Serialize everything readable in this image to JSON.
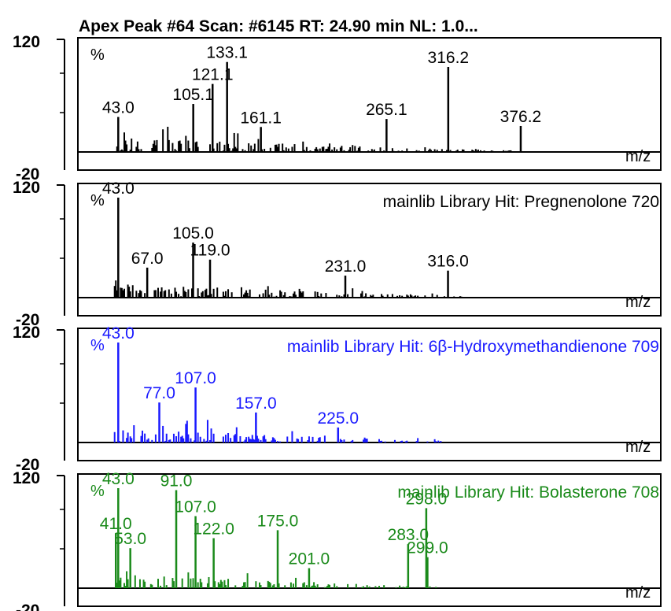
{
  "header": {
    "title": "Apex Peak #64 Scan: #6145  RT: 24.90 min NL: 1.0..."
  },
  "chart_data": [
    {
      "type": "bar",
      "title": "",
      "color": "#000000",
      "ylim": [
        -20,
        120
      ],
      "y_tick_labels": [
        "120",
        "-20"
      ],
      "xlabel": "m/z",
      "ylabel": "%",
      "annotation": "",
      "peaks": [
        {
          "x": 43.0,
          "y": 35,
          "label": "43.0"
        },
        {
          "x": 105.1,
          "y": 48,
          "label": "105.1"
        },
        {
          "x": 121.1,
          "y": 68,
          "label": "121.1"
        },
        {
          "x": 133.1,
          "y": 90,
          "label": "133.1"
        },
        {
          "x": 161.1,
          "y": 25,
          "label": "161.1"
        },
        {
          "x": 265.1,
          "y": 33,
          "label": "265.1"
        },
        {
          "x": 316.2,
          "y": 85,
          "label": "316.2"
        },
        {
          "x": 376.2,
          "y": 26,
          "label": "376.2"
        }
      ]
    },
    {
      "type": "bar",
      "title": "",
      "color": "#000000",
      "ylim": [
        -20,
        120
      ],
      "y_tick_labels": [
        "120",
        "-20"
      ],
      "xlabel": "m/z",
      "ylabel": "%",
      "annotation": "mainlib Library Hit: Pregnenolone 720",
      "peaks": [
        {
          "x": 43.0,
          "y": 100,
          "label": "43.0"
        },
        {
          "x": 67.0,
          "y": 30,
          "label": "67.0"
        },
        {
          "x": 105.0,
          "y": 55,
          "label": "105.0"
        },
        {
          "x": 119.0,
          "y": 38,
          "label": "119.0"
        },
        {
          "x": 231.0,
          "y": 22,
          "label": "231.0"
        },
        {
          "x": 316.0,
          "y": 27,
          "label": "316.0"
        }
      ]
    },
    {
      "type": "bar",
      "title": "",
      "color": "#1a1aff",
      "ylim": [
        -20,
        120
      ],
      "y_tick_labels": [
        "120",
        "-20"
      ],
      "xlabel": "m/z",
      "ylabel": "%",
      "annotation": "mainlib Library Hit: 6β-Hydroxymethandienone 709",
      "peaks": [
        {
          "x": 43.0,
          "y": 100,
          "label": "43.0"
        },
        {
          "x": 77.0,
          "y": 40,
          "label": "77.0"
        },
        {
          "x": 107.0,
          "y": 55,
          "label": "107.0"
        },
        {
          "x": 157.0,
          "y": 30,
          "label": "157.0"
        },
        {
          "x": 225.0,
          "y": 15,
          "label": "225.0"
        }
      ]
    },
    {
      "type": "bar",
      "title": "",
      "color": "#1a8a1a",
      "ylim": [
        -20,
        120
      ],
      "y_tick_labels": [
        "120",
        "-20"
      ],
      "xlabel": "m/z",
      "ylabel": "%",
      "annotation": "mainlib Library Hit: Bolasterone 708",
      "peaks": [
        {
          "x": 41.0,
          "y": 55,
          "label": "41.0"
        },
        {
          "x": 43.0,
          "y": 100,
          "label": "43.0"
        },
        {
          "x": 53.0,
          "y": 40,
          "label": "53.0"
        },
        {
          "x": 91.0,
          "y": 98,
          "label": "91.0"
        },
        {
          "x": 107.0,
          "y": 72,
          "label": "107.0"
        },
        {
          "x": 122.0,
          "y": 50,
          "label": "122.0"
        },
        {
          "x": 175.0,
          "y": 58,
          "label": "175.0"
        },
        {
          "x": 201.0,
          "y": 20,
          "label": "201.0"
        },
        {
          "x": 283.0,
          "y": 44,
          "label": "283.0"
        },
        {
          "x": 298.0,
          "y": 80,
          "label": "298.0"
        },
        {
          "x": 299.0,
          "y": 31,
          "label": "299.0"
        }
      ]
    }
  ]
}
